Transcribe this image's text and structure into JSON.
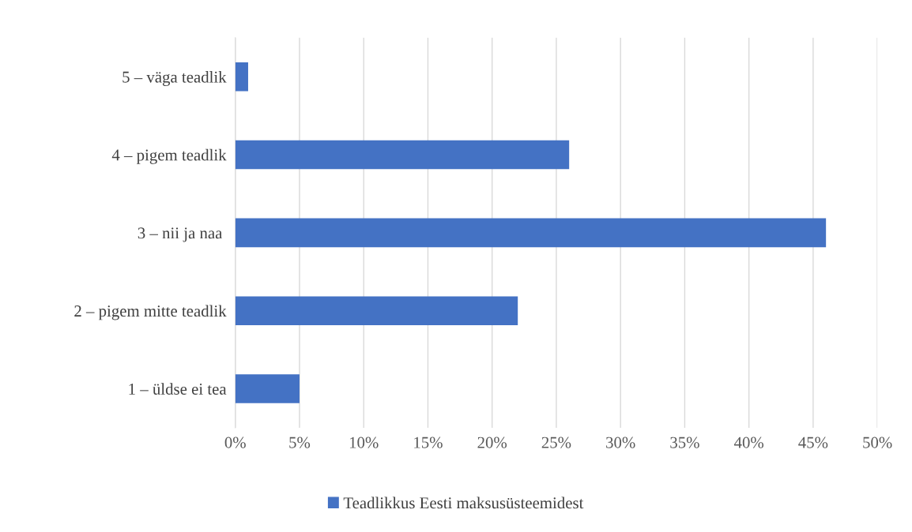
{
  "chart_data": {
    "type": "bar",
    "orientation": "horizontal",
    "categories": [
      "5 – väga teadlik",
      "4 – pigem teadlik",
      "3 – nii ja naa ",
      "2 – pigem mitte teadlik",
      "1 – üldse ei tea"
    ],
    "series": [
      {
        "name": "Teadlikkus Eesti maksusüsteemidest",
        "color": "#4472c4",
        "values": [
          1,
          26,
          46,
          22,
          5
        ]
      }
    ],
    "xlim": [
      0,
      50
    ],
    "xticks": [
      {
        "value": 0,
        "label": "0%"
      },
      {
        "value": 5,
        "label": "5%"
      },
      {
        "value": 10,
        "label": "10%"
      },
      {
        "value": 15,
        "label": "15%"
      },
      {
        "value": 20,
        "label": "20%"
      },
      {
        "value": 25,
        "label": "25%"
      },
      {
        "value": 30,
        "label": "30%"
      },
      {
        "value": 35,
        "label": "35%"
      },
      {
        "value": 40,
        "label": "40%"
      },
      {
        "value": 45,
        "label": "45%"
      },
      {
        "value": 50,
        "label": "50%"
      }
    ],
    "grid": "x",
    "legend": "bottom"
  }
}
